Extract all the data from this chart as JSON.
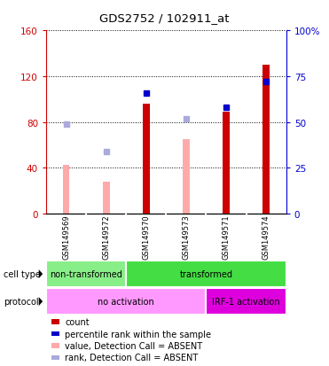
{
  "title": "GDS2752 / 102911_at",
  "samples": [
    "GSM149569",
    "GSM149572",
    "GSM149570",
    "GSM149573",
    "GSM149571",
    "GSM149574"
  ],
  "count_values": [
    null,
    null,
    96,
    null,
    89,
    130
  ],
  "value_absent": [
    43,
    28,
    null,
    65,
    null,
    null
  ],
  "rank_absent_pct": [
    49,
    34,
    null,
    52,
    null,
    null
  ],
  "percentile_present_pct": [
    null,
    null,
    66,
    null,
    58,
    72
  ],
  "ylim_left": [
    0,
    160
  ],
  "ylim_right": [
    0,
    100
  ],
  "yticks_left": [
    0,
    40,
    80,
    120,
    160
  ],
  "yticks_right": [
    0,
    25,
    50,
    75,
    100
  ],
  "ytick_labels_left": [
    "0",
    "40",
    "80",
    "120",
    "160"
  ],
  "ytick_labels_right": [
    "0",
    "25",
    "50",
    "75",
    "100%"
  ],
  "cell_type_groups": [
    {
      "label": "non-transformed",
      "start": 0,
      "end": 2,
      "color": "#88ee88"
    },
    {
      "label": "transformed",
      "start": 2,
      "end": 6,
      "color": "#44dd44"
    }
  ],
  "protocol_groups": [
    {
      "label": "no activation",
      "start": 0,
      "end": 4,
      "color": "#ff99ff"
    },
    {
      "label": "IRF-1 activation",
      "start": 4,
      "end": 6,
      "color": "#dd00dd"
    }
  ],
  "legend_items": [
    {
      "color": "#cc0000",
      "label": "count"
    },
    {
      "color": "#0000cc",
      "label": "percentile rank within the sample"
    },
    {
      "color": "#ffaaaa",
      "label": "value, Detection Call = ABSENT"
    },
    {
      "color": "#aaaadd",
      "label": "rank, Detection Call = ABSENT"
    }
  ],
  "left_axis_color": "#cc0000",
  "right_axis_color": "#0000cc"
}
